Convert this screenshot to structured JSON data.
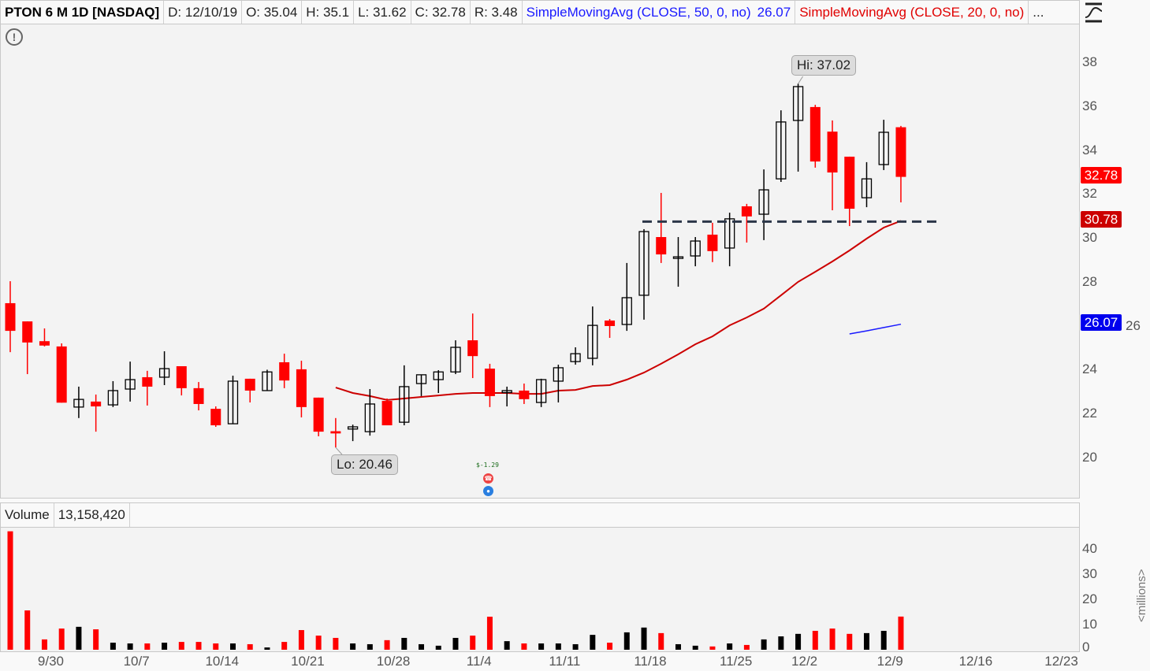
{
  "header": {
    "symbol": "PTON 6 M 1D [NASDAQ]",
    "date": "D: 12/10/19",
    "open": "O: 35.04",
    "high": "H: 35.1",
    "low": "L: 31.62",
    "close": "C: 32.78",
    "range": "R: 3.48",
    "sma50_label": "SimpleMovingAvg (CLOSE, 50, 0, no)",
    "sma50_value": "26.07",
    "sma20_label": "SimpleMovingAvg (CLOSE, 20, 0, no)",
    "more": "..."
  },
  "volume_header": {
    "label": "Volume",
    "value": "13,158,420"
  },
  "annotations": {
    "hi": "Hi: 37.02",
    "lo": "Lo: 20.46",
    "eps": "$-1.29"
  },
  "price_boxes": {
    "close": "32.78",
    "support": "30.78",
    "sma50": "26.07"
  },
  "colors": {
    "up": "#000000",
    "down": "#ff0000",
    "sma20": "#cc0000",
    "sma50": "#1a1aff",
    "support": "#2b3648"
  },
  "price_axis": [
    "38",
    "36",
    "34",
    "32",
    "30",
    "28",
    "26",
    "24",
    "22",
    "20"
  ],
  "volume_axis": [
    "40",
    "30",
    "20",
    "10",
    "0"
  ],
  "volume_unit": "<millions>",
  "dates": [
    {
      "label": "9/30",
      "bar": 2
    },
    {
      "label": "10/7",
      "bar": 7
    },
    {
      "label": "10/14",
      "bar": 12
    },
    {
      "label": "10/21",
      "bar": 17
    },
    {
      "label": "10/28",
      "bar": 22
    },
    {
      "label": "11/4",
      "bar": 27
    },
    {
      "label": "11/11",
      "bar": 32
    },
    {
      "label": "11/18",
      "bar": 37
    },
    {
      "label": "11/25",
      "bar": 42
    },
    {
      "label": "12/2",
      "bar": 46
    },
    {
      "label": "12/9",
      "bar": 51
    },
    {
      "label": "12/16",
      "bar": 56
    },
    {
      "label": "12/23",
      "bar": 61
    }
  ],
  "chart_data": {
    "type": "candlestick",
    "ylim": [
      18.5,
      39.5
    ],
    "ohlc": [
      [
        27.03,
        28.03,
        24.8,
        25.77
      ],
      [
        26.2,
        26.2,
        23.8,
        25.24
      ],
      [
        25.3,
        25.88,
        25.06,
        25.1
      ],
      [
        25.06,
        25.2,
        22.5,
        22.5
      ],
      [
        22.3,
        23.23,
        21.8,
        22.65
      ],
      [
        22.55,
        22.87,
        21.18,
        22.33
      ],
      [
        22.4,
        23.48,
        22.3,
        23.05
      ],
      [
        23.12,
        24.37,
        22.55,
        23.55
      ],
      [
        23.66,
        23.95,
        22.37,
        23.23
      ],
      [
        23.66,
        24.84,
        23.3,
        24.05
      ],
      [
        24.16,
        24.16,
        22.83,
        23.16
      ],
      [
        23.16,
        23.44,
        22.15,
        22.44
      ],
      [
        22.22,
        22.33,
        21.4,
        21.47
      ],
      [
        21.54,
        23.73,
        21.54,
        23.48
      ],
      [
        23.59,
        23.59,
        22.51,
        23.05
      ],
      [
        23.05,
        24.0,
        23.05,
        23.9
      ],
      [
        24.34,
        24.73,
        23.16,
        23.51
      ],
      [
        24.02,
        24.41,
        21.83,
        22.3
      ],
      [
        22.73,
        22.73,
        20.97,
        21.18
      ],
      [
        21.2,
        21.8,
        20.46,
        21.1
      ],
      [
        21.3,
        21.5,
        20.75,
        21.4
      ],
      [
        21.18,
        23.12,
        21.0,
        22.44
      ],
      [
        22.58,
        22.69,
        21.47,
        21.47
      ],
      [
        21.61,
        24.2,
        21.47,
        23.23
      ],
      [
        23.37,
        23.77,
        22.8,
        23.77
      ],
      [
        23.55,
        23.98,
        22.94,
        23.9
      ],
      [
        23.9,
        25.34,
        23.8,
        25.02
      ],
      [
        25.34,
        26.56,
        23.62,
        24.62
      ],
      [
        24.05,
        24.27,
        22.3,
        22.8
      ],
      [
        22.96,
        23.23,
        22.33,
        23.05
      ],
      [
        23.05,
        23.37,
        22.44,
        22.66
      ],
      [
        22.51,
        23.59,
        22.3,
        23.55
      ],
      [
        23.48,
        24.23,
        22.51,
        24.09
      ],
      [
        24.37,
        25.02,
        24.23,
        24.73
      ],
      [
        24.52,
        26.88,
        24.2,
        26.02
      ],
      [
        26.24,
        26.31,
        25.45,
        25.99
      ],
      [
        26.06,
        28.86,
        25.77,
        27.28
      ],
      [
        27.39,
        30.4,
        26.28,
        30.29
      ],
      [
        30.04,
        32.05,
        28.86,
        29.25
      ],
      [
        29.1,
        30.04,
        27.78,
        29.14
      ],
      [
        29.18,
        30.04,
        28.71,
        29.86
      ],
      [
        30.15,
        30.69,
        28.9,
        29.4
      ],
      [
        29.54,
        31.15,
        28.71,
        30.87
      ],
      [
        31.44,
        31.55,
        29.79,
        30.98
      ],
      [
        31.08,
        33.12,
        29.9,
        32.19
      ],
      [
        32.69,
        35.81,
        32.55,
        35.28
      ],
      [
        35.35,
        37.02,
        33.02,
        36.89
      ],
      [
        35.96,
        36.06,
        33.2,
        33.48
      ],
      [
        34.84,
        35.35,
        31.26,
        32.98
      ],
      [
        33.7,
        33.7,
        30.54,
        31.33
      ],
      [
        31.83,
        33.45,
        31.4,
        32.69
      ],
      [
        33.34,
        35.38,
        33.09,
        34.81
      ],
      [
        35.04,
        35.1,
        31.62,
        32.78
      ]
    ],
    "volume_millions": [
      47,
      15.6,
      4.1,
      8.4,
      9.1,
      8.1,
      2.8,
      2.5,
      2.5,
      2.8,
      3.1,
      3.1,
      2.5,
      2.5,
      2.2,
      0.9,
      3.1,
      7.8,
      5.6,
      4.7,
      2.5,
      2.2,
      3.8,
      4.7,
      2.2,
      1.6,
      4.7,
      5.6,
      13.1,
      3.4,
      2.5,
      2.5,
      2.5,
      2.2,
      5.9,
      2.8,
      6.9,
      8.8,
      6.6,
      2.2,
      1.6,
      1.3,
      2.5,
      1.9,
      4.1,
      5.3,
      6.3,
      7.5,
      8.4,
      6.3,
      6.6,
      7.5,
      13.16
    ],
    "sma20": {
      "start_bar": 19,
      "values": [
        23.19,
        22.94,
        22.8,
        22.62,
        22.69,
        22.76,
        22.83,
        22.9,
        22.94,
        22.94,
        22.94,
        22.9,
        22.9,
        23.05,
        23.08,
        23.26,
        23.3,
        23.55,
        23.87,
        24.27,
        24.7,
        25.16,
        25.52,
        26.02,
        26.38,
        26.78,
        27.39,
        28.0,
        28.46,
        28.93,
        29.43,
        29.97,
        30.47,
        30.78
      ]
    },
    "sma50": {
      "start_bar": 49,
      "values": [
        25.63,
        25.77,
        25.92,
        26.07
      ]
    },
    "support_level": {
      "price": 30.78,
      "from_bar": 37,
      "to_bar": 54.3
    },
    "hi": {
      "bar": 46,
      "price": 37.02
    },
    "lo": {
      "bar": 19,
      "price": 20.46
    }
  }
}
